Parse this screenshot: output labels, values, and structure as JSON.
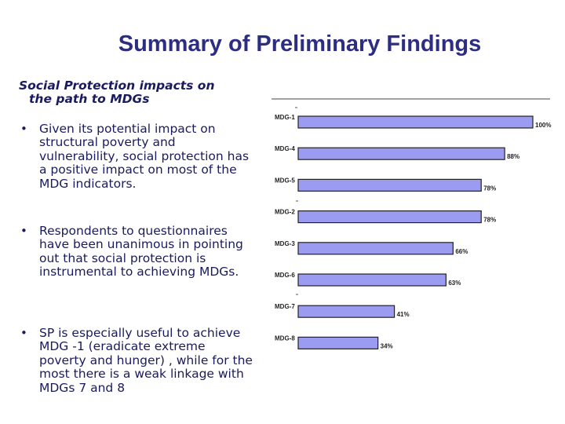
{
  "slide": {
    "title": "Summary of Preliminary Findings",
    "subtitle_line1": "Social Protection impacts on",
    "subtitle_line2": "the path to MDGs",
    "bullets": [
      "Given its potential impact on structural poverty and vulnerability, social protection has a positive impact on most of the MDG indicators.",
      "Respondents to questionnaires have been unanimous in pointing out that social protection is instrumental to achieving MDGs.",
      "SP is especially useful to achieve MDG -1 (eradicate extreme poverty and hunger) , while for the most there is a weak linkage with MDGs 7 and 8"
    ]
  },
  "colors": {
    "title": "#2d2d82",
    "text": "#1a1a5e",
    "bar_fill": "#9b9bf2",
    "bar_stroke": "#222222"
  },
  "chart_data": {
    "type": "bar",
    "orientation": "horizontal",
    "categories": [
      "MDG-1",
      "MDG-4",
      "MDG-5",
      "MDG-2",
      "MDG-3",
      "MDG-6",
      "MDG-7",
      "MDG-8"
    ],
    "values": [
      100,
      88,
      78,
      78,
      66,
      63,
      41,
      34
    ],
    "data_labels": [
      "100%",
      "88%",
      "78%",
      "78%",
      "66%",
      "63%",
      "41%",
      "34%"
    ],
    "xlim": [
      0,
      100
    ],
    "grid": false,
    "legend": "none"
  }
}
